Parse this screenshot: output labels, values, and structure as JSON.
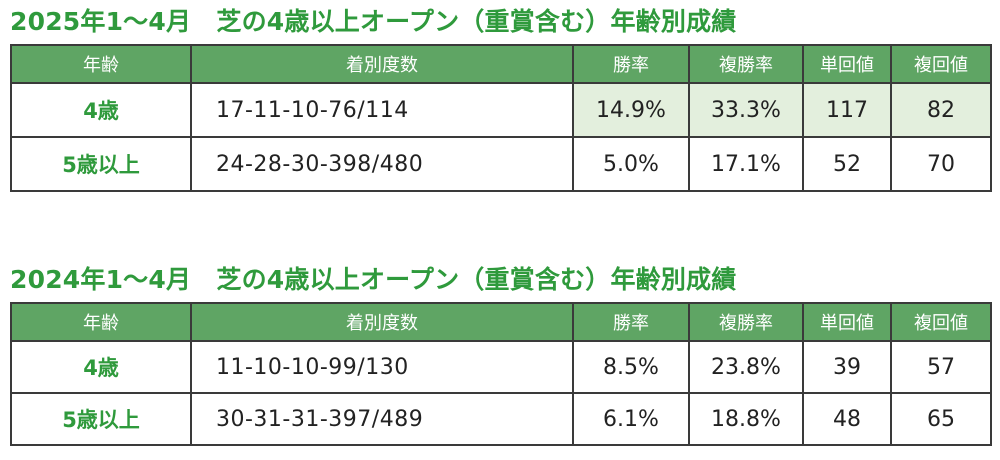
{
  "sections": [
    {
      "title": "2025年1～4月　芝の4歳以上オープン（重賞含む）年齢別成績",
      "headers": [
        "年齢",
        "着別度数",
        "勝率",
        "複勝率",
        "単回値",
        "複回値"
      ],
      "rows": [
        {
          "age": "4歳",
          "record": "17-11-10-76/114",
          "win_rate": "14.9%",
          "place_rate": "33.3%",
          "win_return": "117",
          "place_return": "82"
        },
        {
          "age": "5歳以上",
          "record": "24-28-30-398/480",
          "win_rate": "5.0%",
          "place_rate": "17.1%",
          "win_return": "52",
          "place_return": "70"
        }
      ]
    },
    {
      "title": "2024年1～4月　芝の4歳以上オープン（重賞含む）年齢別成績",
      "headers": [
        "年齢",
        "着別度数",
        "勝率",
        "複勝率",
        "単回値",
        "複回値"
      ],
      "rows": [
        {
          "age": "4歳",
          "record": "11-10-10-99/130",
          "win_rate": "8.5%",
          "place_rate": "23.8%",
          "win_return": "39",
          "place_return": "57"
        },
        {
          "age": "5歳以上",
          "record": "30-31-31-397/489",
          "win_rate": "6.1%",
          "place_rate": "18.8%",
          "win_return": "48",
          "place_return": "65"
        }
      ]
    }
  ],
  "colors": {
    "title": "#2f9a3c",
    "header_bg": "#5fa564",
    "highlight_bg": "#e3efdd",
    "border": "#3a3a3a"
  }
}
